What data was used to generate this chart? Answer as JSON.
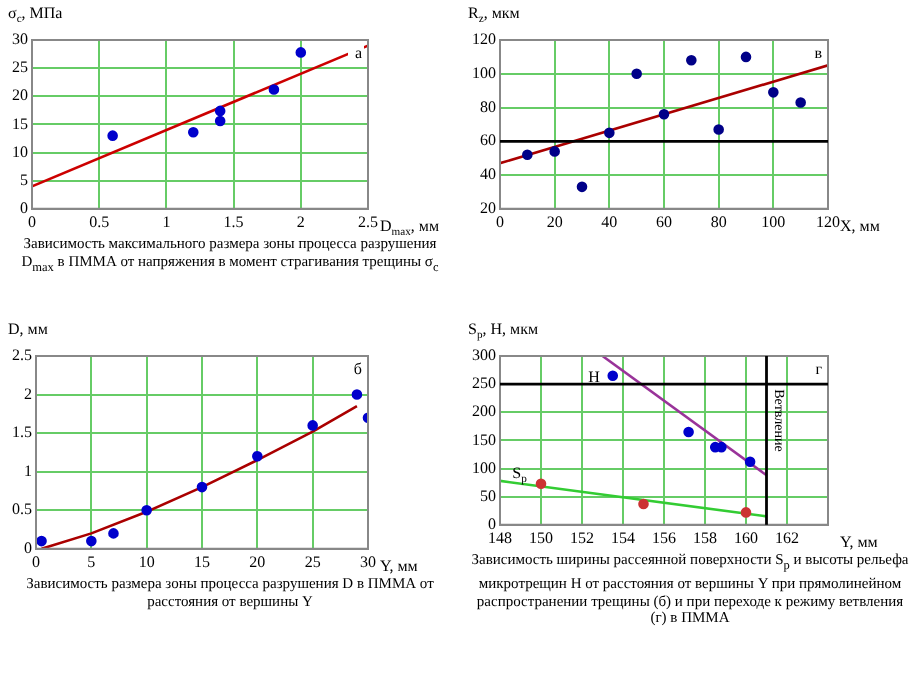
{
  "chart_data": [
    {
      "type": "scatter",
      "title": "Зависимость максимального размера зоны процесса разрушения D$_{max}$ в ПММА от напряжения в момент страгивания трещины σ$_{c}$",
      "xlabel": "D$_{max}$, мм",
      "ylabel": "σ$_{c}$, МПа",
      "annotations": [
        "а"
      ],
      "grid": true,
      "xlim": [
        0,
        2.5
      ],
      "xticks": [
        0,
        0.5,
        1,
        1.5,
        2,
        2.5
      ],
      "ylim": [
        0,
        30
      ],
      "yticks": [
        0,
        5,
        10,
        15,
        20,
        25,
        30
      ],
      "series": [
        {
          "type": "scatter",
          "marker": "circle",
          "color": "#0000cc",
          "x": [
            0.6,
            1.2,
            1.4,
            1.4,
            1.8,
            2.0
          ],
          "values": [
            13,
            13.6,
            15.6,
            17.4,
            21.2,
            27.8
          ]
        },
        {
          "type": "line",
          "marker": "none",
          "color": "#cc0000",
          "x": [
            0,
            2.5
          ],
          "values": [
            4,
            29
          ]
        }
      ]
    },
    {
      "type": "scatter",
      "xlabel": "X, мм",
      "ylabel": "R$_{z}$, мкм",
      "annotations": [
        "в"
      ],
      "grid": true,
      "xlim": [
        0,
        120
      ],
      "xticks": [
        0,
        20,
        40,
        60,
        80,
        100,
        120
      ],
      "ylim": [
        20,
        120
      ],
      "yticks": [
        20,
        40,
        60,
        80,
        100,
        120
      ],
      "ref_lines": [
        {
          "axis": "y",
          "value": 60,
          "color": "#000000"
        }
      ],
      "series": [
        {
          "type": "scatter",
          "marker": "circle",
          "color": "#000088",
          "x": [
            10,
            20,
            30,
            40,
            50,
            60,
            70,
            80,
            90,
            100,
            110
          ],
          "values": [
            52,
            54,
            33,
            65,
            100,
            76,
            108,
            67,
            110,
            89,
            83
          ]
        },
        {
          "type": "line",
          "marker": "none",
          "color": "#aa0000",
          "x": [
            0,
            120
          ],
          "values": [
            47,
            105
          ]
        }
      ]
    },
    {
      "type": "scatter",
      "title": "Зависимость размера зоны процесса разрушения D в ПММА от расстояния от вершины Y",
      "xlabel": "Y, мм",
      "ylabel": "D, мм",
      "annotations": [
        "б"
      ],
      "grid": true,
      "xlim": [
        0,
        30
      ],
      "xticks": [
        0,
        5,
        10,
        15,
        20,
        25,
        30
      ],
      "ylim": [
        0,
        2.5
      ],
      "yticks": [
        0,
        0.5,
        1,
        1.5,
        2,
        2.5
      ],
      "series": [
        {
          "type": "scatter",
          "marker": "circle",
          "color": "#0000cc",
          "x": [
            0.5,
            5,
            7,
            10,
            15,
            20,
            25,
            29,
            30
          ],
          "values": [
            0.1,
            0.1,
            0.2,
            0.5,
            0.8,
            1.2,
            1.6,
            2.0,
            1.7
          ]
        },
        {
          "type": "line",
          "marker": "none",
          "color": "#aa0000",
          "x": [
            0.5,
            5,
            10,
            15,
            20,
            25,
            29
          ],
          "values": [
            0,
            0.2,
            0.48,
            0.8,
            1.15,
            1.52,
            1.85
          ]
        }
      ]
    },
    {
      "type": "scatter",
      "title": "Зависимость ширины рассеянной поверхности S$_{p}$ и высоты рельефа микротрещин H от расстояния от вершины Y при прямолинейном распространении трещины (б) и при переходе к режиму ветвления (г) в ПММА",
      "xlabel": "Y, мм",
      "ylabel": "S$_{p}$, H, мкм",
      "annotations": [
        "г",
        {
          "text": "H",
          "x": 152.3,
          "y": 262
        },
        {
          "text": "S$_{p}$",
          "x": 148.6,
          "y": 90
        }
      ],
      "grid": true,
      "xlim": [
        148,
        164
      ],
      "xticks": [
        148,
        150,
        152,
        154,
        156,
        158,
        160,
        162
      ],
      "ylim": [
        0,
        300
      ],
      "yticks": [
        0,
        50,
        100,
        150,
        200,
        250,
        300
      ],
      "ref_lines": [
        {
          "axis": "x",
          "value": 161,
          "label": "Ветвление",
          "color": "#000000"
        },
        {
          "axis": "y",
          "value": 250,
          "color": "#000000"
        }
      ],
      "series": [
        {
          "type": "scatter",
          "marker": "circle",
          "color": "#0000cc",
          "x": [
            153.5,
            157.2,
            158.5,
            158.8,
            160.2
          ],
          "values": [
            265,
            165,
            138,
            138,
            112
          ]
        },
        {
          "type": "line",
          "marker": "none",
          "color": "#993399",
          "x": [
            153,
            161
          ],
          "values": [
            300,
            88
          ]
        },
        {
          "type": "scatter",
          "marker": "circle",
          "color": "#cc3333",
          "x": [
            150,
            155,
            160
          ],
          "values": [
            73,
            37,
            22
          ]
        },
        {
          "type": "line",
          "marker": "none",
          "color": "#33cc33",
          "x": [
            148,
            161
          ],
          "values": [
            78,
            15
          ]
        }
      ]
    }
  ]
}
